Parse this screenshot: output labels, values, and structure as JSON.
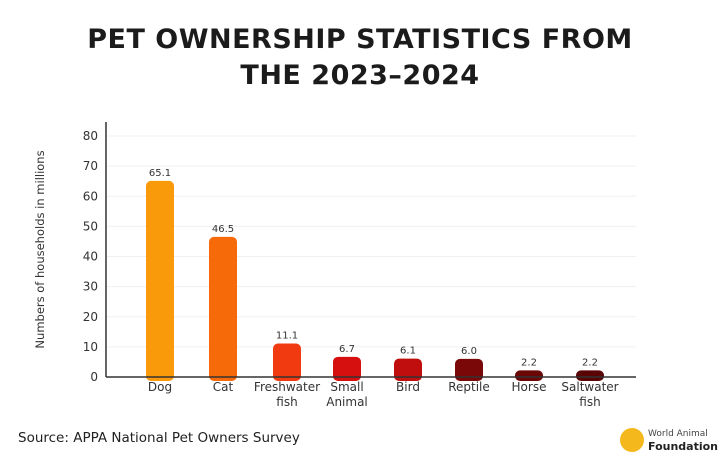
{
  "chart_data": {
    "type": "bar",
    "title": "PET OWNERSHIP STATISTICS FROM THE 2023–2024",
    "title_lines": [
      "PET OWNERSHIP STATISTICS FROM",
      "THE 2023–2024"
    ],
    "ylabel": "Numbers of households in millions",
    "xlabel": "",
    "ylim": [
      0,
      80
    ],
    "yticks": [
      0,
      10,
      20,
      30,
      40,
      50,
      60,
      70,
      80
    ],
    "grid": true,
    "categories": [
      [
        "Dog"
      ],
      [
        "Cat"
      ],
      [
        "Freshwater",
        "fish"
      ],
      [
        "Small",
        "Animal"
      ],
      [
        "Bird"
      ],
      [
        "Reptile"
      ],
      [
        "Horse"
      ],
      [
        "Saltwater",
        "fish"
      ]
    ],
    "values": [
      65.1,
      46.5,
      11.1,
      6.7,
      6.1,
      6.0,
      2.2,
      2.2
    ],
    "data_labels": [
      "65.1",
      "46.5",
      "11.1",
      "6.7",
      "6.1",
      "6.0",
      "2.2",
      "2.2"
    ],
    "colors": [
      "#F99A0A",
      "#F76A0A",
      "#F23A10",
      "#D5100F",
      "#C00E0E",
      "#7A0808",
      "#6A0606",
      "#5A0505"
    ]
  },
  "source": "Source: APPA National Pet Owners Survey",
  "logo": {
    "line1": "World Animal",
    "line2": "Foundation"
  }
}
